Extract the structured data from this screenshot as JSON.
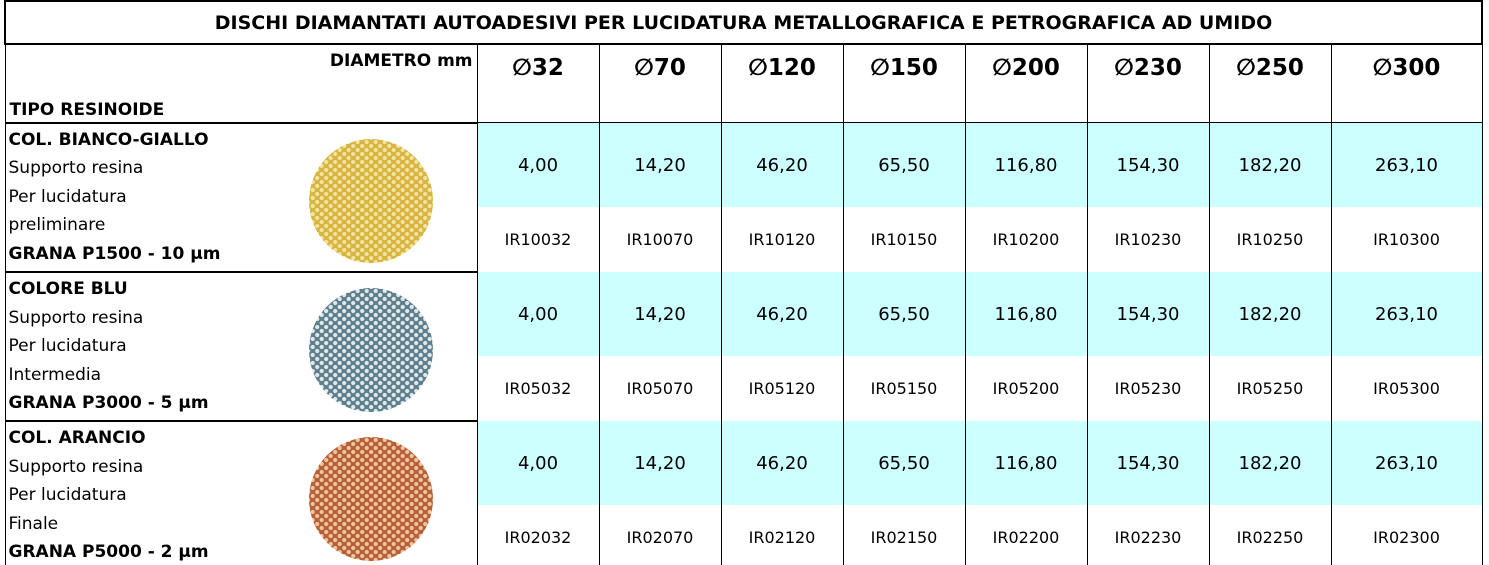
{
  "title": "DISCHI DIAMANTATI AUTOADESIVI PER LUCIDATURA METALLOGRAFICA E PETROGRAFICA AD UMIDO",
  "header": {
    "diameter_label": "DIAMETRO mm",
    "type_label": "TIPO RESINOIDE",
    "diameters": [
      "∅32",
      "∅70",
      "∅120",
      "∅150",
      "∅200",
      "∅230",
      "∅250",
      "∅300"
    ]
  },
  "rows": [
    {
      "name": "COL. BIANCO-GIALLO",
      "lines": [
        "Supporto resina",
        "Per lucidatura",
        "preliminare"
      ],
      "grain": "GRANA P1500 - 10 µm",
      "prices": [
        "4,00",
        "14,20",
        "46,20",
        "65,50",
        "116,80",
        "154,30",
        "182,20",
        "263,10"
      ],
      "codes": [
        "IR10032",
        "IR10070",
        "IR10120",
        "IR10150",
        "IR10200",
        "IR10230",
        "IR10250",
        "IR10300"
      ]
    },
    {
      "name": "COLORE BLU",
      "lines": [
        "Supporto resina",
        "Per lucidatura",
        "Intermedia"
      ],
      "grain": "GRANA P3000 - 5 µm",
      "prices": [
        "4,00",
        "14,20",
        "46,20",
        "65,50",
        "116,80",
        "154,30",
        "182,20",
        "263,10"
      ],
      "codes": [
        "IR05032",
        "IR05070",
        "IR05120",
        "IR05150",
        "IR05200",
        "IR05230",
        "IR05250",
        "IR05300"
      ]
    },
    {
      "name": "COL. ARANCIO",
      "lines": [
        "Supporto resina",
        "Per lucidatura",
        "Finale"
      ],
      "grain": "GRANA P5000 - 2 µm",
      "prices": [
        "4,00",
        "14,20",
        "46,20",
        "65,50",
        "116,80",
        "154,30",
        "182,20",
        "263,10"
      ],
      "codes": [
        "IR02032",
        "IR02070",
        "IR02120",
        "IR02150",
        "IR02200",
        "IR02230",
        "IR02250",
        "IR02300"
      ]
    }
  ]
}
